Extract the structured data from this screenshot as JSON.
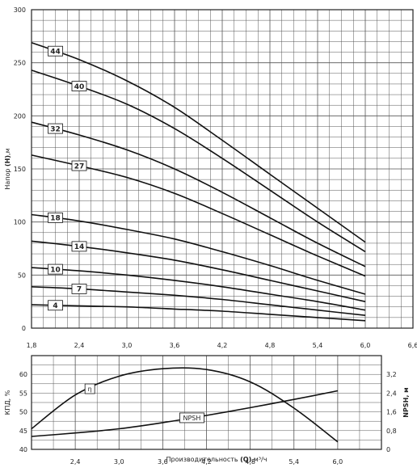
{
  "chart_data": [
    {
      "type": "line",
      "xlabel": "",
      "ylabel_prefix": "Напор ",
      "ylabel_strong": "(H)",
      "ylabel_suffix": ",м",
      "xlim": [
        1.8,
        6.6
      ],
      "ylim": [
        0,
        300
      ],
      "x_ticks": [
        1.8,
        2.4,
        3.0,
        3.6,
        4.2,
        4.8,
        5.4,
        6.0,
        6.6
      ],
      "x_tick_labels": [
        "1,8",
        "2,4",
        "3,0",
        "3,6",
        "4,2",
        "4,8",
        "5,4",
        "6,0",
        "6,6"
      ],
      "y_ticks": [
        0,
        50,
        100,
        150,
        200,
        250,
        300
      ],
      "y_tick_labels": [
        "0",
        "50",
        "100",
        "150",
        "200",
        "250",
        "300"
      ],
      "grid": true,
      "series": [
        {
          "name": "44",
          "label_x": 2.1,
          "x": [
            1.8,
            2.4,
            3.0,
            3.6,
            4.2,
            4.8,
            5.4,
            6.0
          ],
          "y": [
            269,
            253,
            233,
            208,
            177,
            145,
            113,
            81
          ]
        },
        {
          "name": "40",
          "label_x": 2.4,
          "x": [
            1.8,
            2.4,
            3.0,
            3.6,
            4.2,
            4.8,
            5.4,
            6.0
          ],
          "y": [
            243,
            228,
            211,
            188,
            160,
            130,
            100,
            72
          ]
        },
        {
          "name": "32",
          "label_x": 2.1,
          "x": [
            1.8,
            2.4,
            3.0,
            3.6,
            4.2,
            4.8,
            5.4,
            6.0
          ],
          "y": [
            194,
            182,
            168,
            150,
            128,
            104,
            80,
            58
          ]
        },
        {
          "name": "27",
          "label_x": 2.4,
          "x": [
            1.8,
            2.4,
            3.0,
            3.6,
            4.2,
            4.8,
            5.4,
            6.0
          ],
          "y": [
            163,
            153,
            142,
            127,
            108,
            88,
            68,
            49
          ]
        },
        {
          "name": "18",
          "label_x": 2.1,
          "x": [
            1.8,
            2.4,
            3.0,
            3.6,
            4.2,
            4.8,
            5.4,
            6.0
          ],
          "y": [
            107,
            101,
            93,
            84,
            72,
            59,
            45,
            32
          ]
        },
        {
          "name": "14",
          "label_x": 2.4,
          "x": [
            1.8,
            2.4,
            3.0,
            3.6,
            4.2,
            4.8,
            5.4,
            6.0
          ],
          "y": [
            82,
            77,
            71,
            64,
            55,
            45,
            35,
            25
          ]
        },
        {
          "name": "10",
          "label_x": 2.1,
          "x": [
            1.8,
            2.4,
            3.0,
            3.6,
            4.2,
            4.8,
            5.4,
            6.0
          ],
          "y": [
            57,
            54,
            50,
            45,
            39,
            32,
            25,
            17
          ]
        },
        {
          "name": "7",
          "label_x": 2.4,
          "x": [
            1.8,
            2.4,
            3.0,
            3.6,
            4.2,
            4.8,
            5.4,
            6.0
          ],
          "y": [
            39,
            37,
            34,
            31,
            27,
            22,
            17,
            12
          ]
        },
        {
          "name": "4",
          "label_x": 2.1,
          "x": [
            1.8,
            2.4,
            3.0,
            3.6,
            4.2,
            4.8,
            5.4,
            6.0
          ],
          "y": [
            22,
            21,
            20,
            18,
            16,
            13,
            10,
            7
          ]
        }
      ]
    },
    {
      "type": "line",
      "xlabel_prefix": "Производительность ",
      "xlabel_strong": "(Q)",
      "xlabel_suffix": ",м³/ч",
      "ylabel_left": "КПД, %",
      "ylabel_right": "NPSH, м",
      "xlim": [
        1.8,
        6.6
      ],
      "ylim_left": [
        40,
        65
      ],
      "ylim_right": [
        0,
        4.0
      ],
      "x_ticks": [
        2.4,
        3.0,
        3.6,
        4.2,
        4.8,
        5.4,
        6.0
      ],
      "x_tick_labels": [
        "2,4",
        "3,0",
        "3,6",
        "4,2",
        "4,8",
        "5,4",
        "6,0"
      ],
      "y_ticks_left": [
        40,
        45,
        50,
        55,
        60
      ],
      "y_tick_labels_left": [
        "40",
        "45",
        "50",
        "55",
        "60"
      ],
      "y_ticks_right": [
        0,
        0.8,
        1.6,
        2.4,
        3.2
      ],
      "y_tick_labels_right": [
        "0",
        "0,8",
        "1,6",
        "2,4",
        "3,2"
      ],
      "grid": true,
      "series": [
        {
          "name": "η",
          "axis": "left",
          "x": [
            1.8,
            2.4,
            3.0,
            3.6,
            4.2,
            4.8,
            5.4,
            6.0
          ],
          "y": [
            45.5,
            54.5,
            59.5,
            61.5,
            61.3,
            58.0,
            51.0,
            42.0
          ]
        },
        {
          "name": "NPSH",
          "axis": "right",
          "x": [
            1.8,
            2.4,
            3.0,
            3.6,
            4.2,
            4.8,
            5.4,
            6.0
          ],
          "y": [
            0.55,
            0.7,
            0.88,
            1.14,
            1.45,
            1.78,
            2.13,
            2.5
          ]
        }
      ]
    }
  ]
}
